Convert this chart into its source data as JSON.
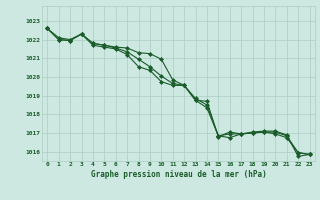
{
  "title": "Graphe pression niveau de la mer (hPa)",
  "background_color": "#cce8e0",
  "grid_color": "#aaccc4",
  "line_color": "#1a5c2a",
  "marker_color": "#1a5c2a",
  "x_labels": [
    "0",
    "1",
    "2",
    "3",
    "4",
    "5",
    "6",
    "7",
    "8",
    "9",
    "10",
    "11",
    "12",
    "13",
    "14",
    "15",
    "16",
    "17",
    "18",
    "19",
    "20",
    "21",
    "22",
    "23"
  ],
  "ylim_min": 1015.5,
  "ylim_max": 1023.8,
  "yticks": [
    1016,
    1017,
    1018,
    1019,
    1020,
    1021,
    1022,
    1023
  ],
  "series1": [
    1022.6,
    1022.1,
    1022.0,
    1022.3,
    1021.8,
    1021.7,
    1021.6,
    1021.55,
    1021.3,
    1021.25,
    1020.95,
    1019.85,
    1019.55,
    1018.75,
    1018.7,
    1016.8,
    1017.05,
    1016.95,
    1017.05,
    1017.1,
    1017.1,
    1016.9,
    1015.75,
    1015.85
  ],
  "series2": [
    1022.6,
    1022.0,
    1021.95,
    1022.3,
    1021.8,
    1021.7,
    1021.55,
    1021.35,
    1020.95,
    1020.55,
    1020.05,
    1019.65,
    1019.55,
    1018.85,
    1018.5,
    1016.85,
    1016.95,
    1016.95,
    1017.0,
    1017.05,
    1016.95,
    1016.75,
    1015.95,
    1015.85
  ],
  "series3": [
    1022.6,
    1022.0,
    1021.95,
    1022.3,
    1021.7,
    1021.6,
    1021.5,
    1021.2,
    1020.55,
    1020.35,
    1019.75,
    1019.55,
    1019.55,
    1018.75,
    1018.35,
    1016.85,
    1016.75,
    1016.95,
    1017.0,
    1017.05,
    1017.05,
    1016.85,
    1015.95,
    1015.85
  ]
}
